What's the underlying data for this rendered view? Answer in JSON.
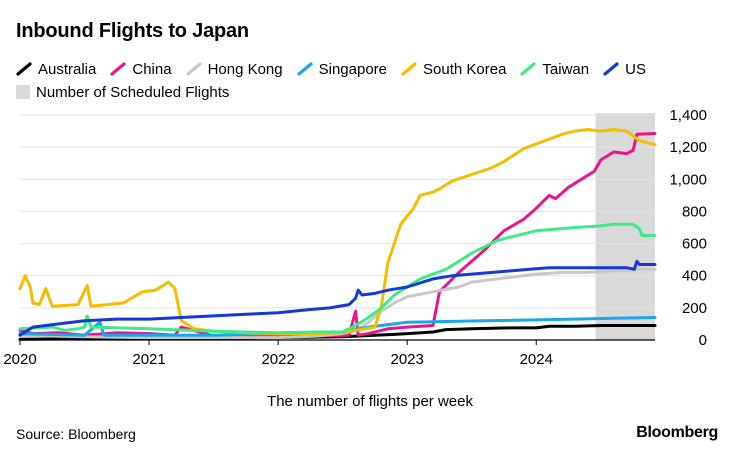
{
  "chart_data": {
    "type": "line",
    "title": "Inbound Flights to Japan",
    "xlabel": "The number of flights per week",
    "ylabel": "",
    "ylim": [
      0,
      1400
    ],
    "yticks": [
      0,
      200,
      400,
      600,
      800,
      1000,
      1200,
      1400
    ],
    "ytick_labels": [
      "0",
      "200",
      "400",
      "600",
      "800",
      "1,000",
      "1,200",
      "1,400"
    ],
    "xlim": [
      2020.0,
      2024.92
    ],
    "xticks": [
      2020,
      2021,
      2022,
      2023,
      2024
    ],
    "xtick_labels": [
      "2020",
      "2021",
      "2022",
      "2023",
      "2024"
    ],
    "shaded_region": {
      "label": "Number of Scheduled Flights",
      "x_start": 2024.46,
      "x_end": 2024.92,
      "color": "#d9d9d9"
    },
    "grid": "horizontal",
    "legend_position": "top-left",
    "series": [
      {
        "name": "Australia",
        "color": "#000000",
        "points": [
          [
            2020.0,
            5
          ],
          [
            2020.5,
            8
          ],
          [
            2021.0,
            10
          ],
          [
            2021.5,
            10
          ],
          [
            2022.0,
            15
          ],
          [
            2022.5,
            20
          ],
          [
            2022.75,
            30
          ],
          [
            2022.9,
            35
          ],
          [
            2023.0,
            40
          ],
          [
            2023.2,
            50
          ],
          [
            2023.3,
            65
          ],
          [
            2023.5,
            70
          ],
          [
            2023.8,
            75
          ],
          [
            2024.0,
            75
          ],
          [
            2024.1,
            85
          ],
          [
            2024.3,
            85
          ],
          [
            2024.5,
            90
          ],
          [
            2024.75,
            90
          ],
          [
            2024.92,
            90
          ]
        ]
      },
      {
        "name": "China",
        "color": "#e8168c",
        "points": [
          [
            2020.0,
            60
          ],
          [
            2020.1,
            40
          ],
          [
            2020.3,
            45
          ],
          [
            2020.5,
            30
          ],
          [
            2020.75,
            45
          ],
          [
            2021.0,
            40
          ],
          [
            2021.2,
            30
          ],
          [
            2021.25,
            80
          ],
          [
            2021.5,
            25
          ],
          [
            2021.75,
            20
          ],
          [
            2022.0,
            20
          ],
          [
            2022.3,
            25
          ],
          [
            2022.55,
            30
          ],
          [
            2022.6,
            180
          ],
          [
            2022.62,
            30
          ],
          [
            2022.7,
            40
          ],
          [
            2022.85,
            70
          ],
          [
            2023.0,
            80
          ],
          [
            2023.2,
            90
          ],
          [
            2023.25,
            300
          ],
          [
            2023.4,
            420
          ],
          [
            2023.6,
            560
          ],
          [
            2023.75,
            680
          ],
          [
            2023.9,
            750
          ],
          [
            2024.0,
            820
          ],
          [
            2024.1,
            900
          ],
          [
            2024.15,
            880
          ],
          [
            2024.25,
            950
          ],
          [
            2024.35,
            1000
          ],
          [
            2024.45,
            1050
          ],
          [
            2024.5,
            1120
          ],
          [
            2024.6,
            1170
          ],
          [
            2024.7,
            1160
          ],
          [
            2024.75,
            1180
          ],
          [
            2024.78,
            1280
          ],
          [
            2024.92,
            1285
          ]
        ]
      },
      {
        "name": "Hong Kong",
        "color": "#c8c8c8",
        "points": [
          [
            2020.0,
            30
          ],
          [
            2020.5,
            20
          ],
          [
            2021.0,
            15
          ],
          [
            2021.5,
            15
          ],
          [
            2022.0,
            15
          ],
          [
            2022.3,
            25
          ],
          [
            2022.5,
            40
          ],
          [
            2022.6,
            60
          ],
          [
            2022.7,
            110
          ],
          [
            2022.8,
            180
          ],
          [
            2022.9,
            230
          ],
          [
            2023.0,
            270
          ],
          [
            2023.2,
            300
          ],
          [
            2023.4,
            330
          ],
          [
            2023.5,
            360
          ],
          [
            2023.7,
            380
          ],
          [
            2023.9,
            400
          ],
          [
            2024.0,
            410
          ],
          [
            2024.2,
            420
          ],
          [
            2024.4,
            420
          ],
          [
            2024.6,
            430
          ],
          [
            2024.8,
            440
          ],
          [
            2024.92,
            440
          ]
        ]
      },
      {
        "name": "Singapore",
        "color": "#1aa7e8",
        "points": [
          [
            2020.0,
            40
          ],
          [
            2020.5,
            30
          ],
          [
            2020.62,
            110
          ],
          [
            2020.65,
            30
          ],
          [
            2021.0,
            30
          ],
          [
            2021.5,
            30
          ],
          [
            2022.0,
            40
          ],
          [
            2022.5,
            50
          ],
          [
            2022.7,
            80
          ],
          [
            2022.9,
            100
          ],
          [
            2023.0,
            110
          ],
          [
            2023.3,
            115
          ],
          [
            2023.6,
            120
          ],
          [
            2024.0,
            125
          ],
          [
            2024.3,
            130
          ],
          [
            2024.6,
            135
          ],
          [
            2024.92,
            140
          ]
        ]
      },
      {
        "name": "South Korea",
        "color": "#f4bd00",
        "points": [
          [
            2020.0,
            320
          ],
          [
            2020.04,
            400
          ],
          [
            2020.08,
            330
          ],
          [
            2020.1,
            230
          ],
          [
            2020.15,
            220
          ],
          [
            2020.2,
            320
          ],
          [
            2020.25,
            210
          ],
          [
            2020.45,
            220
          ],
          [
            2020.52,
            340
          ],
          [
            2020.55,
            210
          ],
          [
            2020.8,
            230
          ],
          [
            2020.95,
            300
          ],
          [
            2021.05,
            310
          ],
          [
            2021.15,
            360
          ],
          [
            2021.2,
            320
          ],
          [
            2021.25,
            120
          ],
          [
            2021.35,
            70
          ],
          [
            2021.5,
            55
          ],
          [
            2021.75,
            45
          ],
          [
            2022.0,
            40
          ],
          [
            2022.3,
            40
          ],
          [
            2022.5,
            45
          ],
          [
            2022.6,
            60
          ],
          [
            2022.75,
            80
          ],
          [
            2022.8,
            210
          ],
          [
            2022.85,
            480
          ],
          [
            2022.95,
            720
          ],
          [
            2023.05,
            820
          ],
          [
            2023.1,
            900
          ],
          [
            2023.2,
            920
          ],
          [
            2023.25,
            940
          ],
          [
            2023.35,
            990
          ],
          [
            2023.5,
            1030
          ],
          [
            2023.65,
            1070
          ],
          [
            2023.75,
            1110
          ],
          [
            2023.9,
            1190
          ],
          [
            2024.0,
            1220
          ],
          [
            2024.1,
            1250
          ],
          [
            2024.2,
            1280
          ],
          [
            2024.3,
            1300
          ],
          [
            2024.4,
            1310
          ],
          [
            2024.5,
            1300
          ],
          [
            2024.6,
            1310
          ],
          [
            2024.7,
            1300
          ],
          [
            2024.8,
            1240
          ],
          [
            2024.92,
            1215
          ]
        ]
      },
      {
        "name": "Taiwan",
        "color": "#3deb88",
        "points": [
          [
            2020.0,
            70
          ],
          [
            2020.25,
            80
          ],
          [
            2020.35,
            60
          ],
          [
            2020.45,
            70
          ],
          [
            2020.5,
            80
          ],
          [
            2020.52,
            150
          ],
          [
            2020.55,
            80
          ],
          [
            2021.0,
            70
          ],
          [
            2021.5,
            55
          ],
          [
            2022.0,
            45
          ],
          [
            2022.3,
            50
          ],
          [
            2022.5,
            50
          ],
          [
            2022.6,
            90
          ],
          [
            2022.7,
            140
          ],
          [
            2022.8,
            200
          ],
          [
            2022.9,
            280
          ],
          [
            2023.0,
            330
          ],
          [
            2023.1,
            380
          ],
          [
            2023.2,
            410
          ],
          [
            2023.3,
            440
          ],
          [
            2023.4,
            490
          ],
          [
            2023.5,
            540
          ],
          [
            2023.6,
            580
          ],
          [
            2023.7,
            620
          ],
          [
            2023.8,
            640
          ],
          [
            2023.9,
            660
          ],
          [
            2024.0,
            680
          ],
          [
            2024.15,
            690
          ],
          [
            2024.3,
            700
          ],
          [
            2024.5,
            710
          ],
          [
            2024.6,
            720
          ],
          [
            2024.75,
            720
          ],
          [
            2024.8,
            690
          ],
          [
            2024.82,
            650
          ],
          [
            2024.92,
            650
          ]
        ]
      },
      {
        "name": "US",
        "color": "#1439d6",
        "points": [
          [
            2020.0,
            30
          ],
          [
            2020.1,
            80
          ],
          [
            2020.3,
            100
          ],
          [
            2020.5,
            120
          ],
          [
            2020.75,
            130
          ],
          [
            2021.0,
            130
          ],
          [
            2021.25,
            140
          ],
          [
            2021.5,
            150
          ],
          [
            2021.75,
            160
          ],
          [
            2022.0,
            170
          ],
          [
            2022.25,
            190
          ],
          [
            2022.4,
            200
          ],
          [
            2022.55,
            220
          ],
          [
            2022.6,
            260
          ],
          [
            2022.62,
            310
          ],
          [
            2022.65,
            280
          ],
          [
            2022.75,
            290
          ],
          [
            2022.85,
            310
          ],
          [
            2023.0,
            330
          ],
          [
            2023.2,
            380
          ],
          [
            2023.35,
            400
          ],
          [
            2023.5,
            410
          ],
          [
            2023.65,
            420
          ],
          [
            2023.8,
            430
          ],
          [
            2023.95,
            440
          ],
          [
            2024.1,
            450
          ],
          [
            2024.3,
            450
          ],
          [
            2024.5,
            450
          ],
          [
            2024.7,
            450
          ],
          [
            2024.76,
            440
          ],
          [
            2024.78,
            490
          ],
          [
            2024.8,
            470
          ],
          [
            2024.92,
            470
          ]
        ]
      }
    ],
    "source": "Source: Bloomberg",
    "brand": "Bloomberg"
  },
  "legend": {
    "items": [
      {
        "name": "Australia",
        "color": "#000000"
      },
      {
        "name": "China",
        "color": "#e8168c"
      },
      {
        "name": "Hong Kong",
        "color": "#c8c8c8"
      },
      {
        "name": "Singapore",
        "color": "#1aa7e8"
      },
      {
        "name": "South Korea",
        "color": "#f4bd00"
      },
      {
        "name": "Taiwan",
        "color": "#3deb88"
      },
      {
        "name": "US",
        "color": "#1439d6"
      }
    ],
    "shaded_label": "Number of Scheduled Flights",
    "shaded_color": "#d9d9d9"
  }
}
